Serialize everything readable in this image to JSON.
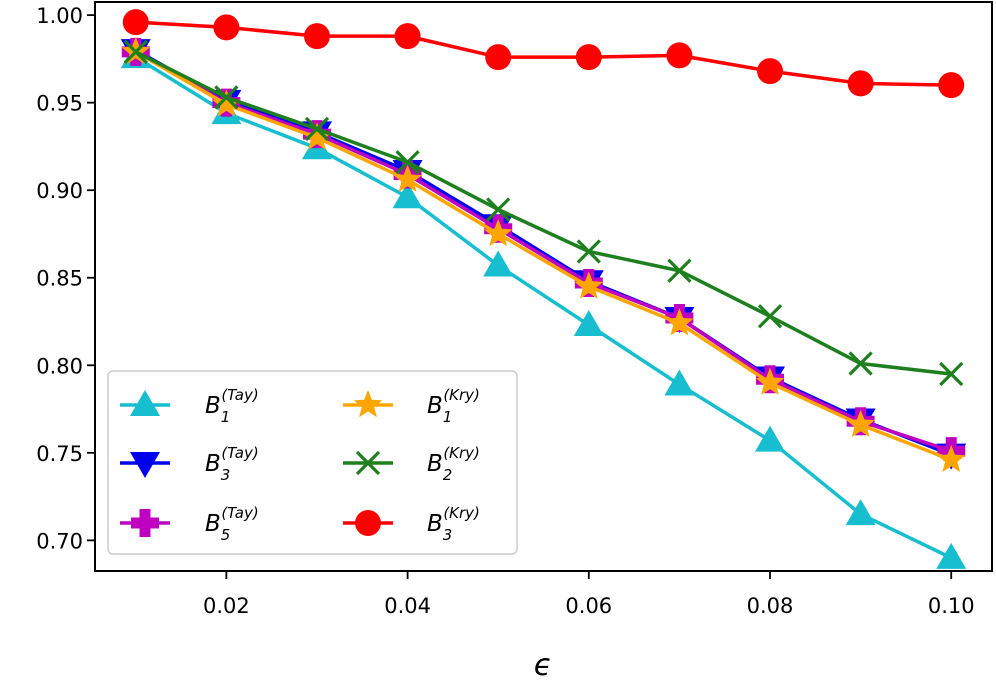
{
  "chart_data": {
    "type": "line",
    "title": "",
    "xlabel": "ϵ",
    "ylabel": "",
    "x": [
      0.01,
      0.02,
      0.03,
      0.04,
      0.05,
      0.06,
      0.07,
      0.08,
      0.09,
      0.1
    ],
    "xlim": [
      0.0055,
      0.1045
    ],
    "ylim": [
      0.6825,
      1.0075
    ],
    "xticks": [
      0.02,
      0.04,
      0.06,
      0.08,
      0.1
    ],
    "xtick_labels": [
      "0.02",
      "0.04",
      "0.06",
      "0.08",
      "0.10"
    ],
    "yticks": [
      0.7,
      0.75,
      0.8,
      0.85,
      0.9,
      0.95,
      1.0
    ],
    "ytick_labels": [
      "0.70",
      "0.75",
      "0.80",
      "0.85",
      "0.90",
      "0.95",
      "1.00"
    ],
    "grid": false,
    "legend_position": "lower-left",
    "series": [
      {
        "name": "B1(Tay)",
        "base": "B",
        "sub": "1",
        "sup": "(Tay)",
        "color": "#17becf",
        "marker": "triangle-up",
        "values": [
          0.976,
          0.944,
          0.924,
          0.896,
          0.857,
          0.823,
          0.789,
          0.757,
          0.715,
          0.69
        ]
      },
      {
        "name": "B3(Tay)",
        "base": "B",
        "sub": "3",
        "sup": "(Tay)",
        "color": "#0000ee",
        "marker": "triangle-down",
        "values": [
          0.98,
          0.951,
          0.933,
          0.911,
          0.88,
          0.848,
          0.827,
          0.793,
          0.769,
          0.749
        ]
      },
      {
        "name": "B5(Tay)",
        "base": "B",
        "sub": "5",
        "sup": "(Tay)",
        "color": "#c000c0",
        "marker": "plus",
        "values": [
          0.979,
          0.95,
          0.932,
          0.909,
          0.878,
          0.847,
          0.827,
          0.792,
          0.768,
          0.751
        ]
      },
      {
        "name": "B1(Kry)",
        "base": "B",
        "sub": "1",
        "sup": "(Kry)",
        "color": "#ffa500",
        "marker": "star",
        "values": [
          0.979,
          0.949,
          0.93,
          0.906,
          0.875,
          0.845,
          0.824,
          0.79,
          0.766,
          0.746
        ]
      },
      {
        "name": "B2(Kry)",
        "base": "B",
        "sub": "2",
        "sup": "(Kry)",
        "color": "#1e7f1e",
        "marker": "x",
        "values": [
          0.979,
          0.953,
          0.935,
          0.916,
          0.889,
          0.865,
          0.854,
          0.828,
          0.801,
          0.795
        ]
      },
      {
        "name": "B3(Kry)",
        "base": "B",
        "sub": "3",
        "sup": "(Kry)",
        "color": "#ff0000",
        "marker": "circle",
        "values": [
          0.996,
          0.993,
          0.988,
          0.988,
          0.976,
          0.976,
          0.977,
          0.968,
          0.961,
          0.96
        ]
      }
    ]
  }
}
